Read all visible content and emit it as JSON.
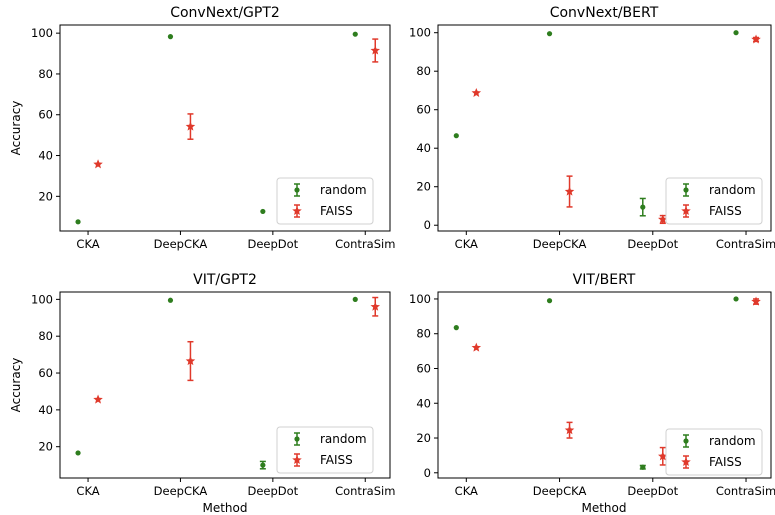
{
  "colors": {
    "random": "#2e7d1e",
    "faiss": "#e0392b"
  },
  "chart_data": [
    {
      "type": "scatter",
      "title": "ConvNext/GPT2",
      "xlabel": "",
      "ylabel": "Accuracy",
      "categories": [
        "CKA",
        "DeepCKA",
        "DeepDot",
        "ContraSim"
      ],
      "ylim": [
        3,
        104
      ],
      "yticks": [
        20,
        40,
        60,
        80,
        100
      ],
      "legend": "lower-right",
      "series": [
        {
          "name": "random",
          "marker": "circle",
          "values": [
            7.5,
            98.3,
            12.6,
            99.5
          ],
          "errors": [
            0.3,
            0.3,
            0.3,
            0.3
          ]
        },
        {
          "name": "FAISS",
          "marker": "star",
          "values": [
            35.7,
            54.2,
            22.6,
            91.5
          ],
          "errors": [
            0.5,
            6.2,
            4.2,
            5.6
          ]
        }
      ]
    },
    {
      "type": "scatter",
      "title": "ConvNext/BERT",
      "xlabel": "",
      "ylabel": "",
      "categories": [
        "CKA",
        "DeepCKA",
        "DeepDot",
        "ContraSim"
      ],
      "ylim": [
        -3,
        104
      ],
      "yticks": [
        0,
        20,
        40,
        60,
        80,
        100
      ],
      "legend": "lower-right",
      "series": [
        {
          "name": "random",
          "marker": "circle",
          "values": [
            46.5,
            99.5,
            9.4,
            100
          ],
          "errors": [
            0.3,
            0.3,
            4.5,
            0.3
          ]
        },
        {
          "name": "FAISS",
          "marker": "star",
          "values": [
            68.7,
            17.5,
            3.0,
            96.5
          ],
          "errors": [
            0.5,
            8.0,
            2.0,
            1.0
          ]
        }
      ]
    },
    {
      "type": "scatter",
      "title": "VIT/GPT2",
      "xlabel": "Method",
      "ylabel": "Accuracy",
      "categories": [
        "CKA",
        "DeepCKA",
        "DeepDot",
        "ContraSim"
      ],
      "ylim": [
        3,
        104
      ],
      "yticks": [
        20,
        40,
        60,
        80,
        100
      ],
      "legend": "lower-right",
      "series": [
        {
          "name": "random",
          "marker": "circle",
          "values": [
            16.6,
            99.5,
            10.0,
            100
          ],
          "errors": [
            0.3,
            0.3,
            2.0,
            0.3
          ]
        },
        {
          "name": "FAISS",
          "marker": "star",
          "values": [
            45.6,
            66.5,
            9.2,
            96.0
          ],
          "errors": [
            0.5,
            10.5,
            2.0,
            5.0
          ]
        }
      ]
    },
    {
      "type": "scatter",
      "title": "VIT/BERT",
      "xlabel": "Method",
      "ylabel": "",
      "categories": [
        "CKA",
        "DeepCKA",
        "DeepDot",
        "ContraSim"
      ],
      "ylim": [
        -3,
        104
      ],
      "yticks": [
        0,
        20,
        40,
        60,
        80,
        100
      ],
      "legend": "lower-right",
      "series": [
        {
          "name": "random",
          "marker": "circle",
          "values": [
            83.5,
            99.0,
            3.2,
            100
          ],
          "errors": [
            0.3,
            0.3,
            1.0,
            0.3
          ]
        },
        {
          "name": "FAISS",
          "marker": "star",
          "values": [
            72.0,
            24.5,
            9.5,
            98.5
          ],
          "errors": [
            0.5,
            4.5,
            5.0,
            1.5
          ]
        }
      ]
    }
  ]
}
